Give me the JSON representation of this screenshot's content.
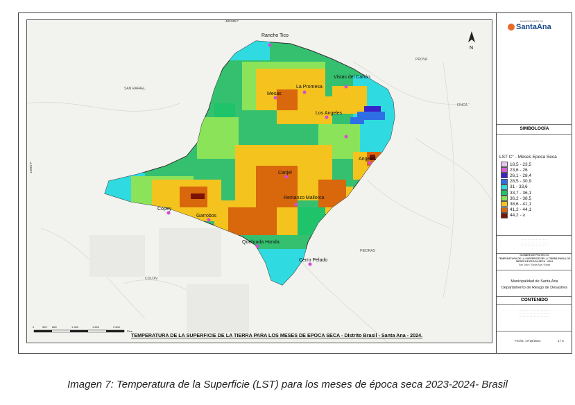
{
  "map": {
    "title": "TEMPERATURA DE LA SUPERFICIE DE LA TIERRA PARA LOS MESES DE EPOCA SECA - Distrito Brasil - Santa Ana - 2024.",
    "grid_top": "482335 F",
    "grid_left": "12857 F",
    "context_labels": [
      "PROVA",
      "SAN RAFAEL",
      "FINCA",
      "PIEDRAS",
      "COLON"
    ],
    "places": [
      "Rancho Tico",
      "Vistas del Cañón",
      "La Promesa",
      "Mesas",
      "Los Angeles",
      "Angeles",
      "Canjel",
      "Remanzo Mallorca",
      "Copey",
      "Garrobos",
      "Quebrada Honda",
      "Cerro Pelado"
    ],
    "scale_ticks": [
      "0",
      "320",
      "860",
      "1 300",
      "1 800",
      "2 600"
    ],
    "scale_unit": "Pies",
    "north": "N"
  },
  "sidebar": {
    "logo_top": "MUNICIPALIDAD DE",
    "logo_main": "SantaAna",
    "symbology_title": "SIMBOLOGÍA",
    "legend_title": "LST C° - Meses Epoca Seca",
    "legend": [
      {
        "label": "18,5 - 23,5",
        "color": "#e7c6ee"
      },
      {
        "label": "23,6 - 26",
        "color": "#d35fd3"
      },
      {
        "label": "26,1 - 28,4",
        "color": "#3a22c9"
      },
      {
        "label": "28,5 - 30,9",
        "color": "#2f6fe6"
      },
      {
        "label": "31 - 33,6",
        "color": "#2fdbe0"
      },
      {
        "label": "33,7 - 36,1",
        "color": "#1fc36a"
      },
      {
        "label": "36,2 - 38,5",
        "color": "#8be35a"
      },
      {
        "label": "38,6 - 41,1",
        "color": "#f4c31e"
      },
      {
        "label": "41,2 - 44,1",
        "color": "#d9670c"
      },
      {
        "label": "44,2 - ≥",
        "color": "#7a1206"
      }
    ],
    "project_heading": "NOMBRE DE PROYECTO",
    "project_name": "TEMPERATURA DE LA SUPERFICIE DE LA TIERRA PARA LOS MESES DE EPOCA SECA - 2024",
    "project_sub": "San José / Santa Ana / Brasil",
    "org": "Municipalidad de Santa Ana",
    "dept": "Departamento de Riesgo de Desastres",
    "content_heading": "CONTENIDO",
    "fecha": "Fecha: 17/10/2024",
    "page": "1 / 6"
  },
  "caption": "Imagen 7: Temperatura de la Superficie (LST) para los meses de época seca 2023-2024- Brasil"
}
